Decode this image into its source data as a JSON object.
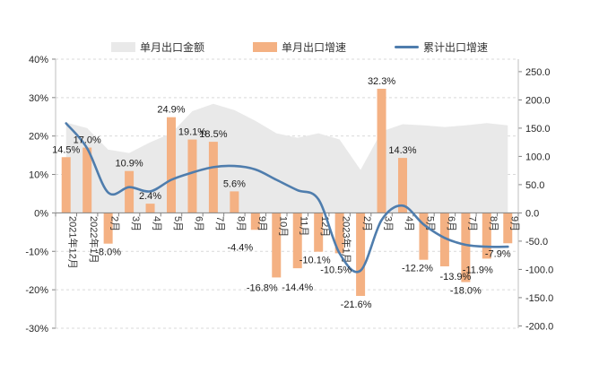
{
  "chart_data": {
    "type": "combo",
    "title": "",
    "categories": [
      "2021年12月",
      "2022年1月",
      "2月",
      "3月",
      "4月",
      "5月",
      "6月",
      "7月",
      "8月",
      "9月",
      "10月",
      "11月",
      "12月",
      "2023年1月",
      "2月",
      "3月",
      "4月",
      "5月",
      "6月",
      "7月",
      "8月",
      "9月"
    ],
    "series": [
      {
        "name": "单月出口金额",
        "type": "area",
        "axis": "right",
        "color": "#e9e9e9",
        "values": [
          160,
          150,
          112,
          106,
          125,
          141,
          180,
          193,
          182,
          163,
          141,
          133,
          141,
          130,
          76,
          144,
          157,
          155,
          152,
          155,
          159,
          155
        ]
      },
      {
        "name": "单月出口增速",
        "type": "bar",
        "axis": "left",
        "color": "#f4b183",
        "values": [
          14.5,
          17.0,
          -8.0,
          10.9,
          2.4,
          24.9,
          19.1,
          18.5,
          5.6,
          -4.4,
          -16.8,
          -14.4,
          -10.1,
          -10.5,
          -21.6,
          32.3,
          14.3,
          -12.2,
          -13.9,
          -18.0,
          -11.9,
          -7.9
        ],
        "labels": [
          "14.5%",
          "17.0%",
          "-8.0%",
          "10.9%",
          "2.4%",
          "24.9%",
          "19.1%",
          "18.5%",
          "5.6%",
          "-4.4%",
          "-16.8%",
          "-14.4%",
          "-10.1%",
          "-10.5%",
          "-21.6%",
          "32.3%",
          "14.3%",
          "-12.2%",
          "-13.9%",
          "-18.0%",
          "-11.9%",
          "-7.9%"
        ]
      },
      {
        "name": "累计出口增速",
        "type": "line",
        "axis": "left",
        "color": "#4f7dad",
        "smooth": true,
        "values": [
          23.3,
          16.8,
          5.3,
          6.7,
          5.6,
          8.6,
          10.5,
          11.9,
          12.2,
          11.3,
          8.6,
          5.9,
          3.5,
          -10.5,
          -15.0,
          -1.9,
          1.9,
          -3.0,
          -6.5,
          -8.3,
          -8.8,
          -8.8
        ]
      }
    ],
    "left_axis": {
      "ticks": [
        "40%",
        "30%",
        "20%",
        "10%",
        "0%",
        "-10%",
        "-20%",
        "-30%"
      ],
      "values": [
        40,
        30,
        20,
        10,
        0,
        -10,
        -20,
        -30
      ],
      "min": -30,
      "max": 40
    },
    "right_axis": {
      "ticks": [
        "250.0",
        "200.0",
        "150.0",
        "100.0",
        "50.0",
        "0.0",
        "-50.0",
        "-100.0",
        "-150.0",
        "-200.0"
      ],
      "values": [
        250,
        200,
        150,
        100,
        50,
        0,
        -50,
        -100,
        -150,
        -200
      ],
      "min": -200,
      "max": 250
    },
    "legend_position": "top",
    "grid": "dashed-horizontal",
    "colors": {
      "bar": "#f4b183",
      "area": "#e9e9e9",
      "line": "#4f7dad",
      "gridline": "#d9d9d9",
      "axis": "#808080",
      "text": "#262626"
    }
  }
}
